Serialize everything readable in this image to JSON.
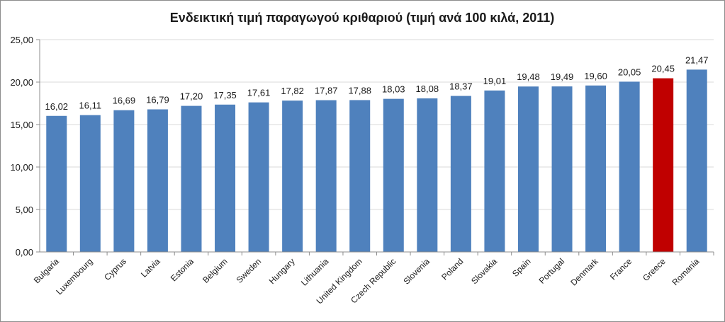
{
  "chart_data": {
    "type": "bar",
    "title": "Ενδεικτική τιμή παραγωγού κριθαριού (τιμή ανά 100 κιλά, 2011)",
    "categories": [
      "Bulgaria",
      "Luxembourg",
      "Cyprus",
      "Latvia",
      "Estonia",
      "Belgium",
      "Sweden",
      "Hungary",
      "Lithuania",
      "United Kingdom",
      "Czech Republic",
      "Slovenia",
      "Poland",
      "Slovakia",
      "Spain",
      "Portugal",
      "Denmark",
      "France",
      "Greece",
      "Romania"
    ],
    "values": [
      16.02,
      16.11,
      16.69,
      16.79,
      17.2,
      17.35,
      17.61,
      17.82,
      17.87,
      17.88,
      18.03,
      18.08,
      18.37,
      19.01,
      19.48,
      19.49,
      19.6,
      20.05,
      20.45,
      21.47
    ],
    "value_labels": [
      "16,02",
      "16,11",
      "16,69",
      "16,79",
      "17,20",
      "17,35",
      "17,61",
      "17,82",
      "17,87",
      "17,88",
      "18,03",
      "18,08",
      "18,37",
      "19,01",
      "19,48",
      "19,49",
      "19,60",
      "20,05",
      "20,45",
      "21,47"
    ],
    "yticks": [
      0,
      5,
      10,
      15,
      20,
      25
    ],
    "ytick_labels": [
      "0,00",
      "5,00",
      "10,00",
      "15,00",
      "20,00",
      "25,00"
    ],
    "ylim": [
      0,
      25
    ],
    "xlabel": "",
    "ylabel": "",
    "grid": true,
    "legend": false,
    "bar_color": "#4f81bd",
    "highlight_category": "Greece",
    "highlight_color": "#c00000",
    "grid_color": "#d9d9d9"
  }
}
